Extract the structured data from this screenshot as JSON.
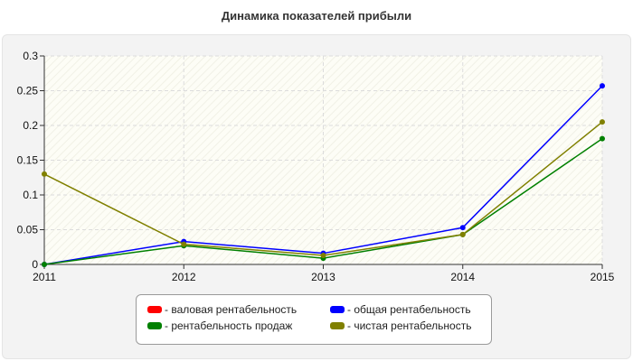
{
  "chart_data": {
    "type": "line",
    "title": "Динамика показателей прибыли",
    "categories": [
      "2011",
      "2012",
      "2013",
      "2014",
      "2015"
    ],
    "y_ticks": [
      "0",
      "0.05",
      "0.1",
      "0.15",
      "0.2",
      "0.25",
      "0.3"
    ],
    "ylim": [
      0,
      0.3
    ],
    "grid": true,
    "legend_position": "bottom",
    "series": [
      {
        "name": "- валовая рентабельность",
        "color": "#ff0000",
        "values": [
          null,
          null,
          null,
          null,
          null
        ]
      },
      {
        "name": "- общая рентабельность",
        "color": "#0000ff",
        "values": [
          0.0,
          0.033,
          0.016,
          0.053,
          0.257
        ]
      },
      {
        "name": "- рентабельность продаж",
        "color": "#008000",
        "values": [
          0.0,
          0.027,
          0.009,
          0.043,
          0.181
        ]
      },
      {
        "name": "- чистая рентабельность",
        "color": "#808000",
        "values": [
          0.13,
          0.029,
          0.013,
          0.043,
          0.205
        ]
      }
    ]
  }
}
